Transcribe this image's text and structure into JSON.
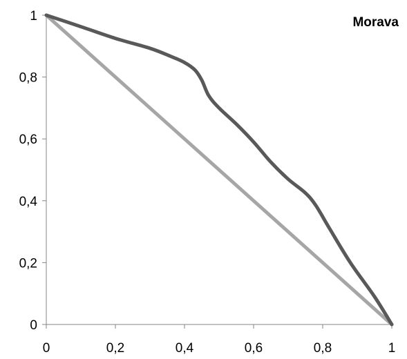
{
  "chart_data": {
    "type": "line",
    "title": "Morava",
    "xlabel": "",
    "ylabel": "",
    "xlim": [
      0,
      1
    ],
    "ylim": [
      0,
      1
    ],
    "x_ticks": [
      "0",
      "0,2",
      "0,4",
      "0,6",
      "0,8",
      "1"
    ],
    "y_ticks": [
      "0",
      "0,2",
      "0,4",
      "0,6",
      "0,8",
      "1"
    ],
    "grid": false,
    "legend": "none",
    "series": [
      {
        "color": "#595959",
        "x": [
          0,
          0.1,
          0.2,
          0.3,
          0.36,
          0.4,
          0.43,
          0.45,
          0.47,
          0.5,
          0.55,
          0.6,
          0.65,
          0.7,
          0.75,
          0.78,
          0.82,
          0.88,
          0.95,
          1
        ],
        "y": [
          1,
          0.963,
          0.925,
          0.893,
          0.867,
          0.847,
          0.823,
          0.79,
          0.74,
          0.7,
          0.648,
          0.59,
          0.525,
          0.47,
          0.425,
          0.385,
          0.31,
          0.2,
          0.09,
          0
        ]
      },
      {
        "color": "#a6a6a6",
        "x": [
          0,
          1
        ],
        "y": [
          1,
          0
        ]
      }
    ]
  }
}
